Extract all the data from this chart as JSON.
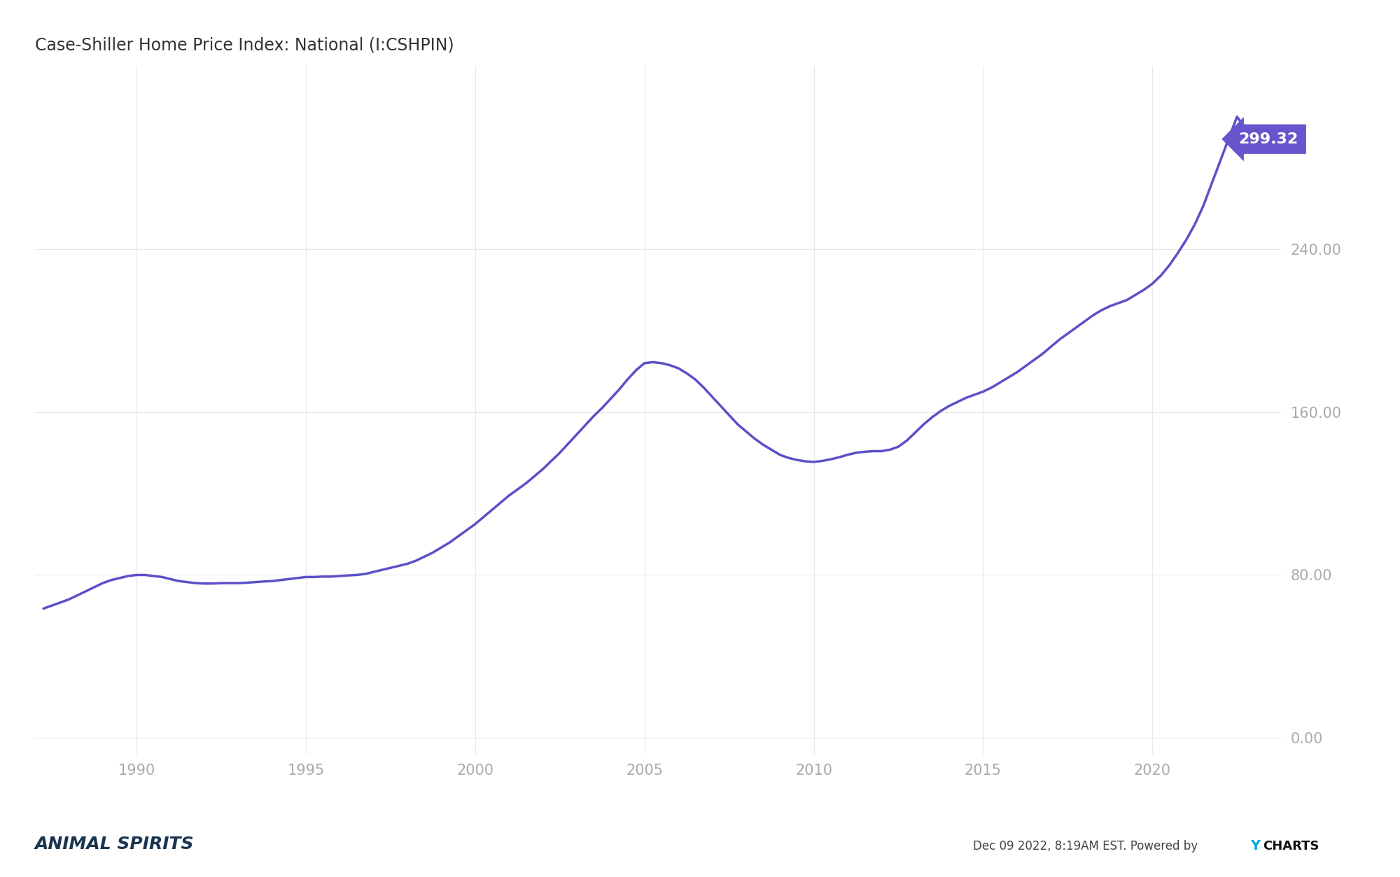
{
  "title": "Case-Shiller Home Price Index: National (I:CSHPIN)",
  "title_fontsize": 17,
  "title_color": "#333333",
  "line_color": "#5b50c8",
  "line_width": 2.5,
  "bg_color": "#ffffff",
  "grid_color": "#e8e8e8",
  "label_color": "#aaaaaa",
  "end_label_value": "299.32",
  "end_label_bg": "#6655cc",
  "end_label_color": "#ffffff",
  "ytick_labels": [
    "0.00",
    "80.00",
    "160.00",
    "240.00"
  ],
  "ytick_values": [
    0,
    80,
    160,
    240
  ],
  "xtick_labels": [
    "1990",
    "1995",
    "2000",
    "2005",
    "2010",
    "2015",
    "2020"
  ],
  "xtick_values": [
    1990,
    1995,
    2000,
    2005,
    2010,
    2015,
    2020
  ],
  "footer_left": "ANIMAL SPIRITS",
  "footer_right": "Dec 09 2022, 8:19AM EST. Powered by ",
  "footer_ycharts": "YCHARTS",
  "footer_y_blue": "Y",
  "footer_charts": "CHARTS",
  "xmin": 1987.0,
  "xmax": 2023.8,
  "ymin": -8,
  "ymax": 330,
  "data_x": [
    1987.25,
    1987.5,
    1987.75,
    1988.0,
    1988.25,
    1988.5,
    1988.75,
    1989.0,
    1989.25,
    1989.5,
    1989.75,
    1990.0,
    1990.25,
    1990.5,
    1990.75,
    1991.0,
    1991.25,
    1991.5,
    1991.75,
    1992.0,
    1992.25,
    1992.5,
    1992.75,
    1993.0,
    1993.25,
    1993.5,
    1993.75,
    1994.0,
    1994.25,
    1994.5,
    1994.75,
    1995.0,
    1995.25,
    1995.5,
    1995.75,
    1996.0,
    1996.25,
    1996.5,
    1996.75,
    1997.0,
    1997.25,
    1997.5,
    1997.75,
    1998.0,
    1998.25,
    1998.5,
    1998.75,
    1999.0,
    1999.25,
    1999.5,
    1999.75,
    2000.0,
    2000.25,
    2000.5,
    2000.75,
    2001.0,
    2001.25,
    2001.5,
    2001.75,
    2002.0,
    2002.25,
    2002.5,
    2002.75,
    2003.0,
    2003.25,
    2003.5,
    2003.75,
    2004.0,
    2004.25,
    2004.5,
    2004.75,
    2005.0,
    2005.25,
    2005.5,
    2005.75,
    2006.0,
    2006.25,
    2006.5,
    2006.75,
    2007.0,
    2007.25,
    2007.5,
    2007.75,
    2008.0,
    2008.25,
    2008.5,
    2008.75,
    2009.0,
    2009.25,
    2009.5,
    2009.75,
    2010.0,
    2010.25,
    2010.5,
    2010.75,
    2011.0,
    2011.25,
    2011.5,
    2011.75,
    2012.0,
    2012.25,
    2012.5,
    2012.75,
    2013.0,
    2013.25,
    2013.5,
    2013.75,
    2014.0,
    2014.25,
    2014.5,
    2014.75,
    2015.0,
    2015.25,
    2015.5,
    2015.75,
    2016.0,
    2016.25,
    2016.5,
    2016.75,
    2017.0,
    2017.25,
    2017.5,
    2017.75,
    2018.0,
    2018.25,
    2018.5,
    2018.75,
    2019.0,
    2019.25,
    2019.5,
    2019.75,
    2020.0,
    2020.25,
    2020.5,
    2020.75,
    2021.0,
    2021.25,
    2021.5,
    2021.75,
    2022.0,
    2022.25,
    2022.5,
    2022.75
  ],
  "data_y": [
    63.5,
    65.0,
    66.5,
    68.0,
    70.0,
    72.0,
    74.0,
    76.0,
    77.5,
    78.5,
    79.5,
    80.0,
    80.0,
    79.5,
    79.0,
    78.0,
    77.0,
    76.5,
    76.0,
    75.8,
    75.8,
    76.0,
    76.0,
    76.0,
    76.2,
    76.5,
    76.8,
    77.0,
    77.5,
    78.0,
    78.5,
    79.0,
    79.0,
    79.2,
    79.2,
    79.5,
    79.8,
    80.0,
    80.5,
    81.5,
    82.5,
    83.5,
    84.5,
    85.5,
    87.0,
    89.0,
    91.0,
    93.5,
    96.0,
    99.0,
    102.0,
    105.0,
    108.5,
    112.0,
    115.5,
    119.0,
    122.0,
    125.0,
    128.5,
    132.0,
    136.0,
    140.0,
    144.5,
    149.0,
    153.5,
    158.0,
    162.0,
    166.5,
    171.0,
    176.0,
    180.5,
    184.0,
    184.5,
    184.0,
    183.0,
    181.5,
    179.0,
    176.0,
    172.0,
    167.5,
    163.0,
    158.5,
    154.0,
    150.5,
    147.0,
    144.0,
    141.5,
    139.0,
    137.5,
    136.5,
    135.8,
    135.5,
    136.0,
    136.8,
    137.8,
    139.0,
    140.0,
    140.5,
    140.8,
    140.8,
    141.5,
    143.0,
    146.0,
    150.0,
    154.0,
    157.5,
    160.5,
    163.0,
    165.0,
    167.0,
    168.5,
    170.0,
    172.0,
    174.5,
    177.0,
    179.5,
    182.5,
    185.5,
    188.5,
    192.0,
    195.5,
    198.5,
    201.5,
    204.5,
    207.5,
    210.0,
    212.0,
    213.5,
    215.0,
    217.5,
    220.0,
    223.0,
    227.0,
    232.0,
    238.0,
    244.5,
    252.0,
    261.0,
    272.0,
    283.0,
    294.0,
    305.0,
    299.32
  ]
}
